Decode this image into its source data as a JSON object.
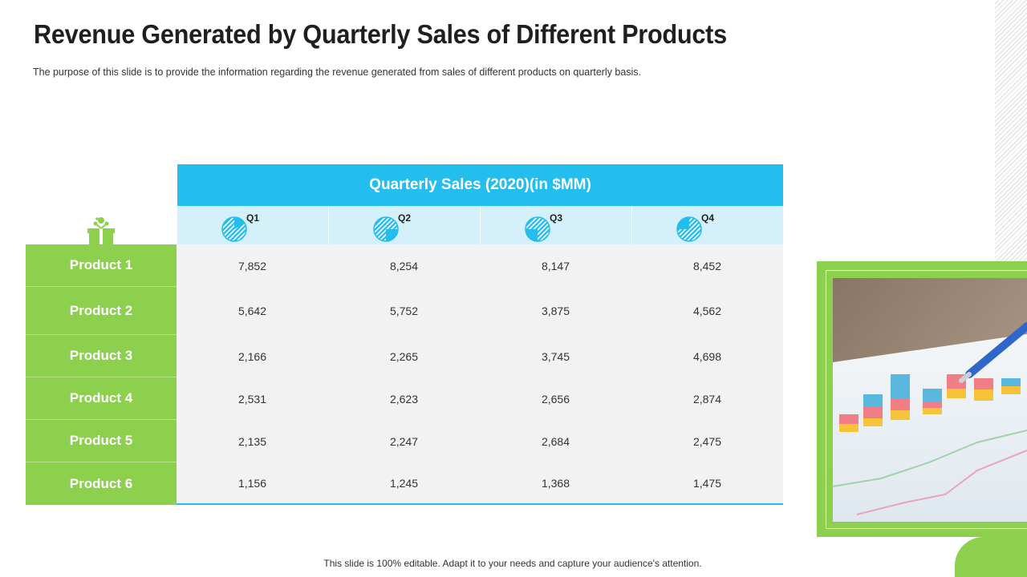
{
  "slide": {
    "title": "Revenue Generated by Quarterly Sales of Different Products",
    "subtitle": "The purpose of this slide is to provide the information regarding the revenue generated from sales of different products on quarterly basis.",
    "footer": "This slide is 100% editable. Adapt it to your needs and capture your audience's attention."
  },
  "table": {
    "header": "Quarterly Sales (2020)(in $MM)",
    "quarters": [
      {
        "label": "Q1",
        "icon": "pie-icon-q1"
      },
      {
        "label": "Q2",
        "icon": "pie-icon-q2"
      },
      {
        "label": "Q3",
        "icon": "pie-icon-q3"
      },
      {
        "label": "Q4",
        "icon": "pie-icon-q4"
      }
    ],
    "rows": [
      {
        "product": "Product 1",
        "values": [
          "7,852",
          "8,254",
          "8,147",
          "8,452"
        ]
      },
      {
        "product": "Product 2",
        "values": [
          "5,642",
          "5,752",
          "3,875",
          "4,562"
        ]
      },
      {
        "product": "Product 3",
        "values": [
          "2,166",
          "2,265",
          "3,745",
          "4,698"
        ]
      },
      {
        "product": "Product 4",
        "values": [
          "2,531",
          "2,623",
          "2,656",
          "2,874"
        ]
      },
      {
        "product": "Product 5",
        "values": [
          "2,135",
          "2,247",
          "2,684",
          "2,475"
        ]
      },
      {
        "product": "Product 6",
        "values": [
          "1,156",
          "1,245",
          "1,368",
          "1,475"
        ]
      }
    ]
  },
  "colors": {
    "accent_blue": "#23bdee",
    "light_blue": "#d4f1fb",
    "green": "#8cd04e",
    "cell_bg": "#f2f2f2"
  }
}
